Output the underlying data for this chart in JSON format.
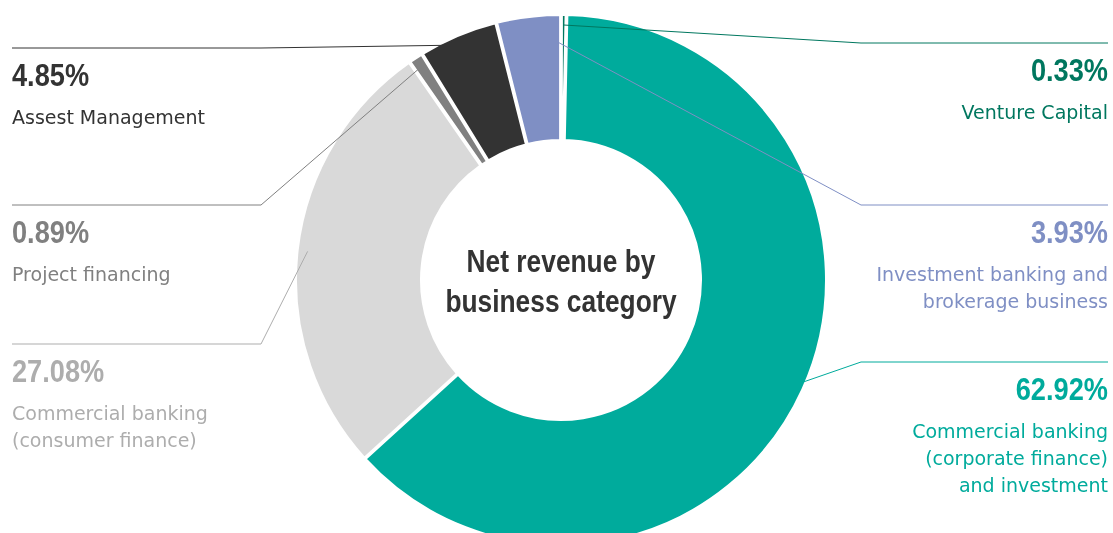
{
  "chart_data": {
    "type": "donut",
    "title": "Net revenue by business category",
    "categories": [
      "Venture Capital",
      "Commercial banking (corporate finance) and investment",
      "Commercial banking (consumer finance)",
      "Project financing",
      "Assest Management",
      "Investment banking and brokerage business"
    ],
    "values": [
      0.33,
      62.92,
      27.08,
      0.89,
      4.85,
      3.93
    ],
    "colors": [
      "#00775f",
      "#00ab9c",
      "#d9d9d9",
      "#808080",
      "#333333",
      "#7f8fc4"
    ],
    "value_labels": [
      "0.33%",
      "62.92%",
      "27.08%",
      "0.89%",
      "4.85%",
      "3.93%"
    ]
  }
}
